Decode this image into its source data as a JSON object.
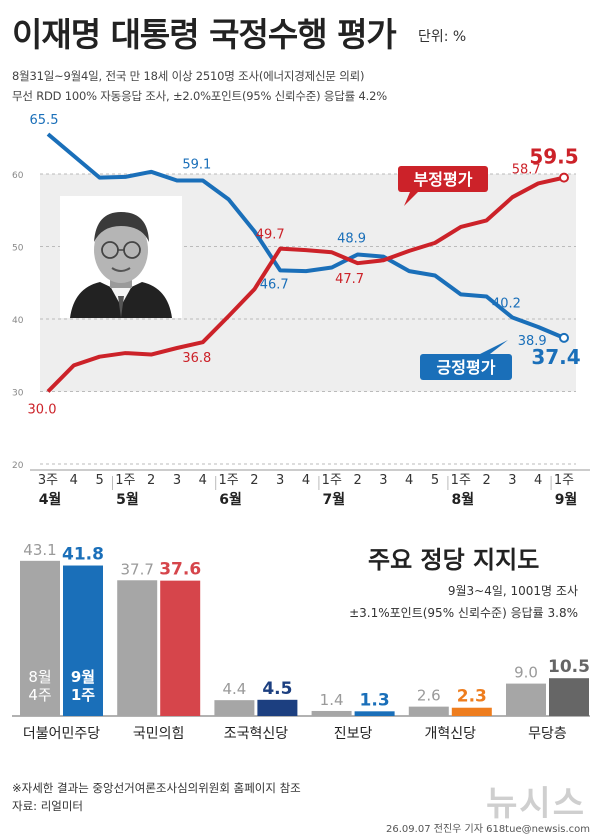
{
  "header": {
    "title": "이재명 대통령 국정수행 평가",
    "unit": "단위: %",
    "sub1": "8월31일~9월4일, 전국 만 18세 이상 2510명 조사(에너지경제신문 의뢰)",
    "sub2": "무선 RDD 100% 자동응답 조사, ±2.0%포인트(95% 신뢰수준) 응답률 4.2%"
  },
  "colors": {
    "positive": "#1a6fb9",
    "negative": "#cc2229",
    "grid": "#bbbbbb",
    "shade": "#eeeeee",
    "bar_prev": "#a6a6a6",
    "party_current": [
      "#1a6fb9",
      "#d6454b",
      "#1c3f80",
      "#1a6fb9",
      "#ee7d1e",
      "#666666"
    ]
  },
  "chart_data": [
    {
      "type": "line",
      "title": "이재명 대통령 국정수행 평가",
      "yticks": [
        20,
        30,
        40,
        50,
        60
      ],
      "ylim": [
        20,
        70
      ],
      "x": [
        "4월 3주",
        "4월 4주",
        "4월 5주",
        "5월 1주",
        "5월 2주",
        "5월 3주",
        "5월 4주",
        "6월 1주",
        "6월 2주",
        "6월 3주",
        "6월 4주",
        "7월 1주",
        "7월 2주",
        "7월 3주",
        "7월 4주",
        "7월 5주",
        "8월 1주",
        "8월 2주",
        "8월 3주",
        "8월 4주",
        "9월 1주"
      ],
      "xtick_labels": [
        "3주",
        "4",
        "5",
        "1주",
        "2",
        "3",
        "4",
        "1주",
        "2",
        "3",
        "4",
        "1주",
        "2",
        "3",
        "4",
        "5",
        "1주",
        "2",
        "3",
        "4",
        "1주"
      ],
      "month_labels": [
        {
          "index": 0,
          "label": "4월"
        },
        {
          "index": 3,
          "label": "5월"
        },
        {
          "index": 7,
          "label": "6월"
        },
        {
          "index": 11,
          "label": "7월"
        },
        {
          "index": 16,
          "label": "8월"
        },
        {
          "index": 20,
          "label": "9월"
        }
      ],
      "series": [
        {
          "name": "긍정평가",
          "values": [
            65.5,
            62.5,
            59.5,
            59.6,
            60.3,
            59.1,
            59.1,
            56.5,
            52.1,
            46.7,
            46.6,
            47.1,
            48.9,
            48.6,
            46.6,
            46.0,
            43.4,
            43.1,
            40.2,
            38.9,
            37.4
          ],
          "labels": [
            {
              "index": 0,
              "text": "65.5"
            },
            {
              "index": 6,
              "text": "59.1"
            },
            {
              "index": 9,
              "text": "46.7"
            },
            {
              "index": 12,
              "text": "48.9"
            },
            {
              "index": 18,
              "text": "40.2"
            },
            {
              "index": 19,
              "text": "38.9"
            },
            {
              "index": 20,
              "text": "37.4"
            }
          ]
        },
        {
          "name": "부정평가",
          "values": [
            30.0,
            33.6,
            34.8,
            35.3,
            35.1,
            36.0,
            36.8,
            40.4,
            44.1,
            49.7,
            49.5,
            49.2,
            47.7,
            48.1,
            49.4,
            50.5,
            52.7,
            53.6,
            56.8,
            58.7,
            59.5
          ],
          "labels": [
            {
              "index": 0,
              "text": "30.0"
            },
            {
              "index": 6,
              "text": "36.8"
            },
            {
              "index": 9,
              "text": "49.7"
            },
            {
              "index": 12,
              "text": "47.7"
            },
            {
              "index": 19,
              "text": "58.7"
            },
            {
              "index": 20,
              "text": "59.5"
            }
          ]
        }
      ]
    },
    {
      "type": "bar",
      "title": "주요 정당 지지도",
      "subtitle1": "9월3~4일, 1001명 조사",
      "subtitle2": "±3.1%포인트(95% 신뢰수준) 응답률 3.8%",
      "categories": [
        "더불어민주당",
        "국민의힘",
        "조국혁신당",
        "진보당",
        "개혁신당",
        "무당층"
      ],
      "series": [
        {
          "name": "8월 4주",
          "values": [
            43.1,
            37.7,
            4.4,
            1.4,
            2.6,
            9.0
          ]
        },
        {
          "name": "9월 1주",
          "values": [
            41.8,
            37.6,
            4.5,
            1.3,
            2.3,
            10.5
          ]
        }
      ],
      "bar_legend": {
        "prev": [
          "8월",
          "4주"
        ],
        "curr": [
          "9월",
          "1주"
        ]
      }
    }
  ],
  "footer": {
    "note": "※자세한 결과는 중앙선거여론조사심의위원회 홈페이지 참조",
    "source": "자료: 리얼미터",
    "credit": "26.09.07 전진우 기자 618tue@newsis.com",
    "watermark": "뉴시스"
  }
}
